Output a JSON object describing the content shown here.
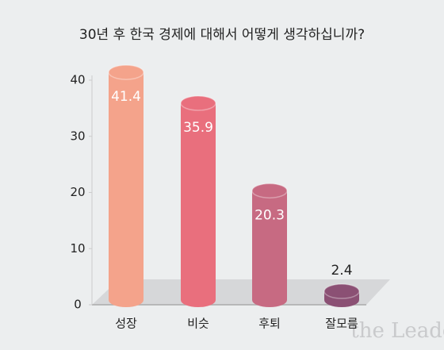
{
  "chart_data": {
    "type": "bar",
    "title": "30년 후 한국 경제에 대해서 어떻게 생각하십니까?",
    "categories": [
      "성장",
      "비슷",
      "후퇴",
      "잘모름"
    ],
    "values": [
      41.4,
      35.9,
      20.3,
      2.4
    ],
    "colors": [
      "#f4a38b",
      "#e96f7d",
      "#c76a82",
      "#8b5074"
    ],
    "ylim": [
      0,
      40
    ],
    "yticks": [
      0,
      10,
      20,
      30,
      40
    ],
    "watermark": "the Leader"
  }
}
